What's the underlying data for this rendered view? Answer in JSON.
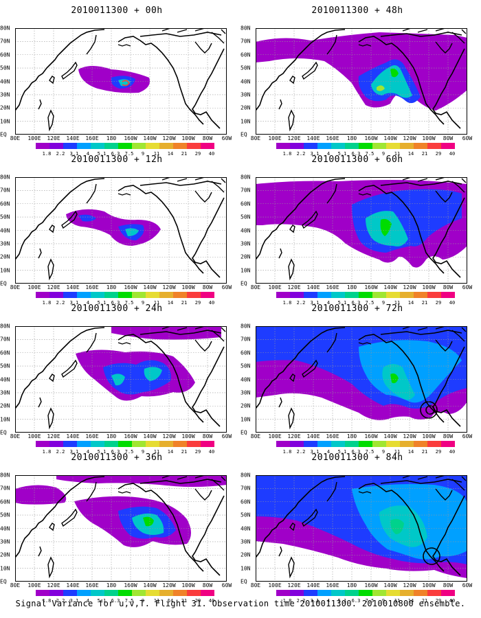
{
  "footer": "Signal Variance for u,v,T. Flight 31. Observation time 2010011300. 2010010800 ensemble.",
  "lat_labels": [
    "80N",
    "70N",
    "60N",
    "50N",
    "40N",
    "30N",
    "20N",
    "10N",
    "EQ"
  ],
  "lon_labels": [
    "80E",
    "100E",
    "120E",
    "140E",
    "160E",
    "180",
    "160W",
    "140W",
    "120W",
    "100W",
    "80W",
    "60W"
  ],
  "colorbar": {
    "labels": [
      "1.8",
      "2.2",
      "3.1",
      "4",
      "5.1",
      "6.3",
      "7.5",
      "9",
      "11",
      "14",
      "21",
      "29",
      "40"
    ],
    "colors": [
      "#a000c8",
      "#8200dc",
      "#1e3cff",
      "#00a0ff",
      "#00c8c8",
      "#00d28c",
      "#00dc00",
      "#a0e632",
      "#e6dc32",
      "#e6af2d",
      "#f08228",
      "#fa3c3c",
      "#f00082"
    ]
  },
  "panels": [
    {
      "title": "2010011300 + 00h"
    },
    {
      "title": "2010011300 + 48h"
    },
    {
      "title": "2010011300 + 12h"
    },
    {
      "title": "2010011300 + 60h"
    },
    {
      "title": "2010011300 + 24h"
    },
    {
      "title": "2010011300 + 72h"
    },
    {
      "title": "2010011300 + 36h"
    },
    {
      "title": "2010011300 + 84h"
    }
  ]
}
